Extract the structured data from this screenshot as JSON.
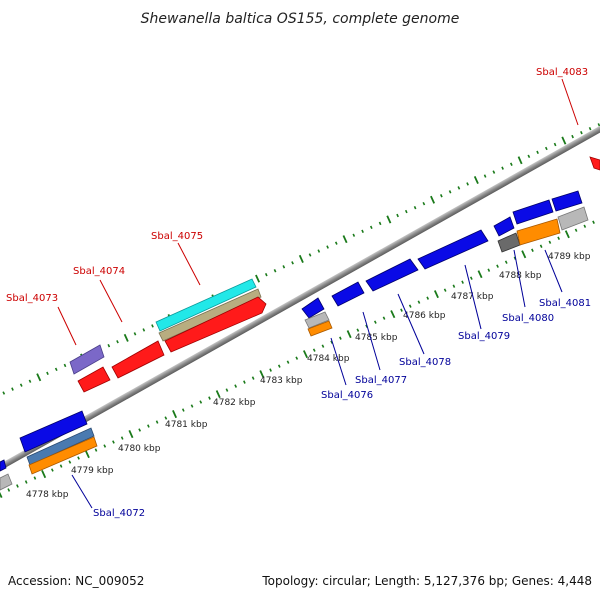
{
  "title": "Shewanella baltica OS155, complete genome",
  "footer": {
    "accession_label": "Accession:",
    "accession": "NC_009052",
    "topology_text": "Topology: circular; Length: 5,127,376 bp; Genes: 4,448"
  },
  "axis": {
    "unit": "kbp",
    "ticks": [
      4778,
      4779,
      4780,
      4781,
      4782,
      4783,
      4784,
      4785,
      4786,
      4787,
      4788,
      4789
    ]
  },
  "colors": {
    "forward_label": "#cc0000",
    "reverse_label": "#000099",
    "backbone": "#7a7a7a",
    "ruler_dots": "#1a7a1a",
    "red_gene": "#ff1a1a",
    "blue_gene": "#0a0ae6",
    "purple_gene": "#7b68c8",
    "cyan_gene": "#22e8e8",
    "tan_gene": "#b8ad80",
    "orange_gene": "#ff8c00",
    "steel_gene": "#4a7ab0",
    "gray_gene": "#b8b8b8",
    "dark_gray_gene": "#6a6a6a"
  },
  "forward_labels": [
    {
      "text": "Sbal_4073"
    },
    {
      "text": "Sbal_4074"
    },
    {
      "text": "Sbal_4075"
    },
    {
      "text": "Sbal_4083"
    }
  ],
  "reverse_labels": [
    {
      "text": "Sbal_4072"
    },
    {
      "text": "Sbal_4076"
    },
    {
      "text": "Sbal_4077"
    },
    {
      "text": "Sbal_4078"
    },
    {
      "text": "Sbal_4079"
    },
    {
      "text": "Sbal_4080"
    },
    {
      "text": "Sbal_4081"
    }
  ]
}
